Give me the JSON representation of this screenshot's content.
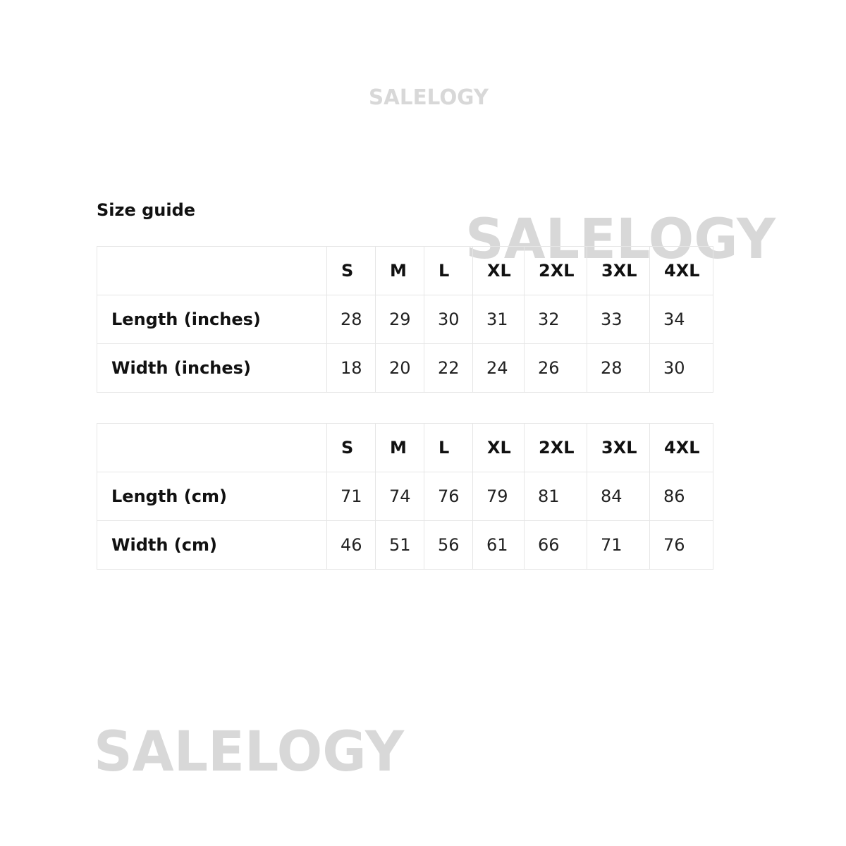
{
  "watermark": "SALELOGY",
  "title": "Size guide",
  "sizes": [
    "S",
    "M",
    "L",
    "XL",
    "2XL",
    "3XL",
    "4XL"
  ],
  "tables": [
    {
      "rows": [
        {
          "label": "Length (inches)",
          "values": [
            "28",
            "29",
            "30",
            "31",
            "32",
            "33",
            "34"
          ]
        },
        {
          "label": "Width (inches)",
          "values": [
            "18",
            "20",
            "22",
            "24",
            "26",
            "28",
            "30"
          ]
        }
      ]
    },
    {
      "rows": [
        {
          "label": "Length (cm)",
          "values": [
            "71",
            "74",
            "76",
            "79",
            "81",
            "84",
            "86"
          ]
        },
        {
          "label": "Width (cm)",
          "values": [
            "46",
            "51",
            "56",
            "61",
            "66",
            "71",
            "76"
          ]
        }
      ]
    }
  ],
  "colors": {
    "watermark": "#d8d8d8",
    "border": "#e6e6e6",
    "text": "#111111"
  }
}
